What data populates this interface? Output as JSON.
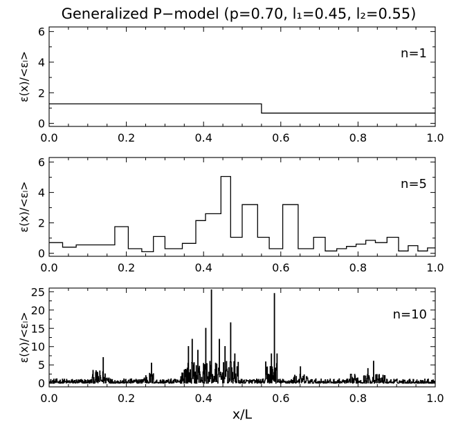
{
  "chart_data": {
    "type": "line",
    "title": "Generalized P−model (p=0.70, l₁=0.45, l₂=0.55)",
    "panels": [
      {
        "label": "n=1",
        "ylabel": "ε(x)/<εₗ>",
        "xlim": [
          0,
          1
        ],
        "ylim": [
          -0.2,
          6.3
        ],
        "yticks": [
          0,
          2,
          4,
          6
        ],
        "xticks": [
          0.0,
          0.2,
          0.4,
          0.6,
          0.8,
          1.0
        ],
        "step_edges": [
          0,
          0.55,
          1.0
        ],
        "step_values": [
          1.27,
          0.67
        ]
      },
      {
        "label": "n=5",
        "ylabel": "ε(x)/<εₗ>",
        "xlim": [
          0,
          1
        ],
        "ylim": [
          -0.2,
          6.3
        ],
        "yticks": [
          0,
          2,
          4,
          6
        ],
        "xticks": [
          0.0,
          0.2,
          0.4,
          0.6,
          0.8,
          1.0
        ],
        "step_edges": [
          0,
          0.035,
          0.07,
          0.125,
          0.17,
          0.205,
          0.24,
          0.27,
          0.3,
          0.345,
          0.38,
          0.405,
          0.445,
          0.47,
          0.5,
          0.54,
          0.57,
          0.605,
          0.645,
          0.685,
          0.715,
          0.745,
          0.77,
          0.795,
          0.82,
          0.845,
          0.875,
          0.905,
          0.93,
          0.955,
          0.98,
          1.0
        ],
        "step_values": [
          0.7,
          0.4,
          0.55,
          0.55,
          1.75,
          0.3,
          0.1,
          1.1,
          0.3,
          0.65,
          2.15,
          2.6,
          5.05,
          1.05,
          3.2,
          1.05,
          0.3,
          3.2,
          0.3,
          1.05,
          0.15,
          0.3,
          0.45,
          0.6,
          0.85,
          0.7,
          1.05,
          0.15,
          0.5,
          0.15,
          0.35
        ],
        "bins_n": 31
      },
      {
        "label": "n=10",
        "ylabel": "ε(x)/<εₗ>",
        "xlabel": "x/L",
        "xlim": [
          0,
          1
        ],
        "ylim": [
          -1,
          26
        ],
        "yticks": [
          0,
          5,
          10,
          15,
          20,
          25
        ],
        "xticks": [
          0.0,
          0.2,
          0.4,
          0.6,
          0.8,
          1.0
        ],
        "noise_segments": [
          {
            "from": 0,
            "to": 1,
            "amp": 1.2
          },
          {
            "from": 0.11,
            "to": 0.16,
            "amp": 3.5
          },
          {
            "from": 0.24,
            "to": 0.27,
            "amp": 3
          },
          {
            "from": 0.34,
            "to": 0.49,
            "amp": 6
          },
          {
            "from": 0.56,
            "to": 0.59,
            "amp": 6
          },
          {
            "from": 0.63,
            "to": 0.67,
            "amp": 2.5
          },
          {
            "from": 0.78,
            "to": 0.87,
            "amp": 2.5
          }
        ],
        "spikes": [
          {
            "x": 0.14,
            "y": 7
          },
          {
            "x": 0.265,
            "y": 5.5
          },
          {
            "x": 0.36,
            "y": 10
          },
          {
            "x": 0.37,
            "y": 12
          },
          {
            "x": 0.385,
            "y": 9
          },
          {
            "x": 0.405,
            "y": 15
          },
          {
            "x": 0.42,
            "y": 25.5
          },
          {
            "x": 0.44,
            "y": 12
          },
          {
            "x": 0.455,
            "y": 10
          },
          {
            "x": 0.47,
            "y": 16.5
          },
          {
            "x": 0.48,
            "y": 8
          },
          {
            "x": 0.575,
            "y": 8
          },
          {
            "x": 0.583,
            "y": 24.5
          },
          {
            "x": 0.59,
            "y": 8
          },
          {
            "x": 0.65,
            "y": 4.5
          },
          {
            "x": 0.825,
            "y": 4
          },
          {
            "x": 0.84,
            "y": 6
          }
        ]
      }
    ]
  }
}
